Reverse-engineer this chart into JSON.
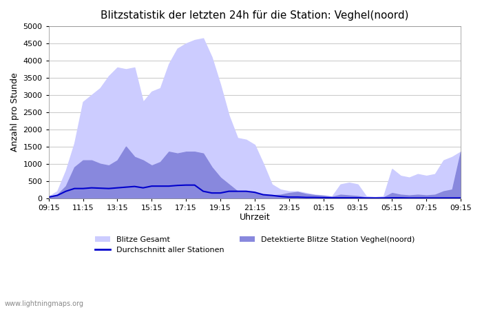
{
  "title": "Blitzstatistik der letzten 24h für die Station: Veghel(noord)",
  "xlabel": "Uhrzeit",
  "ylabel": "Anzahl pro Stunde",
  "ylim": [
    0,
    5000
  ],
  "yticks": [
    0,
    500,
    1000,
    1500,
    2000,
    2500,
    3000,
    3500,
    4000,
    4500,
    5000
  ],
  "xtick_labels": [
    "09:15",
    "11:15",
    "13:15",
    "15:15",
    "17:15",
    "19:15",
    "21:15",
    "23:15",
    "01:15",
    "03:15",
    "05:15",
    "07:15",
    "09:15"
  ],
  "color_gesamt": "#ccccff",
  "color_detected": "#8888dd",
  "color_avg": "#0000cc",
  "watermark": "www.lightningmaps.org",
  "legend": {
    "blitze_gesamt": "Blitze Gesamt",
    "detektierte": "Detektierte Blitze Station Veghel(noord)",
    "durchschnitt": "Durchschnitt aller Stationen"
  },
  "x_values": [
    0,
    1,
    2,
    3,
    4,
    5,
    6,
    7,
    8,
    9,
    10,
    11,
    12,
    13,
    14,
    15,
    16,
    17,
    18,
    19,
    20,
    21,
    22,
    23,
    24,
    25,
    26,
    27,
    28,
    29,
    30,
    31,
    32,
    33,
    34,
    35,
    36,
    37,
    38,
    39,
    40,
    41,
    42,
    43,
    44,
    45,
    46,
    47,
    48
  ],
  "gesamt": [
    50,
    200,
    800,
    1600,
    2800,
    3000,
    3200,
    3550,
    3800,
    3750,
    3800,
    2800,
    3100,
    3200,
    3900,
    4350,
    4500,
    4600,
    4650,
    4100,
    3300,
    2400,
    1750,
    1700,
    1550,
    1000,
    400,
    250,
    200,
    200,
    150,
    100,
    80,
    50,
    400,
    450,
    400,
    50,
    30,
    50,
    850,
    650,
    600,
    700,
    650,
    700,
    1100,
    1200,
    1350
  ],
  "detected": [
    50,
    100,
    350,
    900,
    1100,
    1100,
    1000,
    950,
    1100,
    1500,
    1200,
    1100,
    950,
    1050,
    1350,
    1300,
    1350,
    1350,
    1300,
    900,
    600,
    400,
    200,
    200,
    150,
    100,
    80,
    100,
    150,
    180,
    120,
    90,
    70,
    40,
    100,
    80,
    60,
    20,
    10,
    20,
    150,
    100,
    80,
    100,
    80,
    100,
    200,
    250,
    1350
  ],
  "avg": [
    30,
    80,
    200,
    280,
    280,
    300,
    290,
    280,
    300,
    320,
    340,
    300,
    350,
    350,
    350,
    370,
    380,
    380,
    200,
    150,
    150,
    200,
    200,
    200,
    170,
    100,
    80,
    50,
    30,
    30,
    20,
    20,
    15,
    10,
    10,
    10,
    10,
    5,
    5,
    5,
    10,
    10,
    5,
    5,
    5,
    5,
    5,
    5,
    5
  ]
}
